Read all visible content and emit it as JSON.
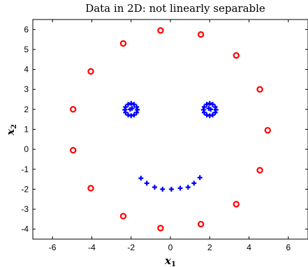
{
  "chart_data": {
    "type": "scatter",
    "title": "Data in 2D: not linearly separable",
    "xlabel": "x",
    "xlabel_sub": "1",
    "ylabel": "x",
    "ylabel_sub": "2",
    "xlim": [
      -7,
      7
    ],
    "ylim": [
      -4.5,
      6.5
    ],
    "xticks": [
      -6,
      -4,
      -2,
      0,
      2,
      4,
      6
    ],
    "yticks": [
      -4,
      -3,
      -2,
      -1,
      0,
      1,
      2,
      3,
      4,
      5,
      6
    ],
    "grid": false,
    "series": [
      {
        "marker": "circle",
        "color": "#ff0000",
        "points": [
          [
            -0.5,
            5.95
          ],
          [
            1.55,
            5.75
          ],
          [
            -2.4,
            5.3
          ],
          [
            3.35,
            4.7
          ],
          [
            -4.05,
            3.9
          ],
          [
            4.55,
            3.0
          ],
          [
            -4.95,
            2.0
          ],
          [
            4.95,
            0.95
          ],
          [
            -4.95,
            -0.05
          ],
          [
            4.55,
            -1.05
          ],
          [
            -4.05,
            -1.95
          ],
          [
            3.35,
            -2.75
          ],
          [
            -2.4,
            -3.35
          ],
          [
            1.55,
            -3.75
          ],
          [
            -0.5,
            -3.95
          ]
        ]
      },
      {
        "marker": "plus",
        "color": "#0000ff",
        "points": [
          [
            -2.0,
            2.3
          ],
          [
            -1.85,
            2.25
          ],
          [
            -1.72,
            2.12
          ],
          [
            -1.68,
            1.98
          ],
          [
            -1.72,
            1.84
          ],
          [
            -1.85,
            1.72
          ],
          [
            -2.0,
            1.68
          ],
          [
            -2.15,
            1.72
          ],
          [
            -2.28,
            1.84
          ],
          [
            -2.32,
            1.98
          ],
          [
            -2.28,
            2.12
          ],
          [
            -2.15,
            2.25
          ],
          [
            -2.05,
            2.0
          ],
          [
            -1.95,
            2.05
          ],
          [
            2.0,
            2.3
          ],
          [
            2.15,
            2.25
          ],
          [
            2.28,
            2.12
          ],
          [
            2.32,
            1.98
          ],
          [
            2.28,
            1.84
          ],
          [
            2.15,
            1.72
          ],
          [
            2.0,
            1.68
          ],
          [
            1.85,
            1.72
          ],
          [
            1.72,
            1.84
          ],
          [
            1.68,
            1.98
          ],
          [
            1.72,
            2.12
          ],
          [
            1.85,
            2.25
          ],
          [
            2.05,
            2.0
          ],
          [
            1.95,
            2.05
          ],
          [
            -1.5,
            -1.45
          ],
          [
            -1.2,
            -1.7
          ],
          [
            -0.8,
            -1.9
          ],
          [
            -0.4,
            -2.0
          ],
          [
            0.05,
            -2.0
          ],
          [
            0.5,
            -1.95
          ],
          [
            0.9,
            -1.9
          ],
          [
            1.2,
            -1.7
          ],
          [
            1.5,
            -1.42
          ]
        ]
      }
    ]
  }
}
